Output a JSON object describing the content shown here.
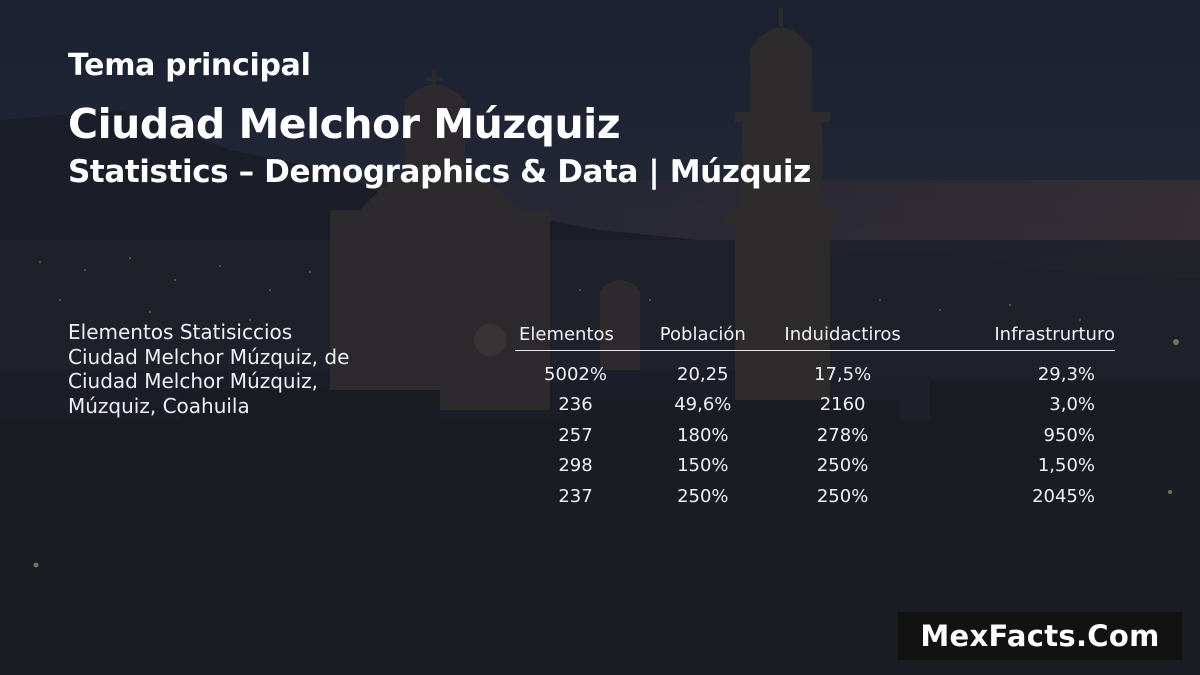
{
  "heading": {
    "kicker": "Tema principal",
    "title": "Ciudad Melchor Múzquiz",
    "subtitle": "Statistics – Demographics & Data | Múzquiz"
  },
  "side_label": {
    "lines": [
      "Elementos Statisiccios",
      "Ciudad Melchor Múzquiz, de",
      "Ciudad Melchor Múzquiz,",
      "Múzquiz, Coahuila"
    ]
  },
  "table": {
    "headers": [
      "Elementos",
      "Población",
      "Induidactiros",
      "Infrastrurturo"
    ],
    "rows": [
      [
        "5002%",
        "20,25",
        "17,5%",
        "29,3%"
      ],
      [
        "236",
        "49,6%",
        "2160",
        "3,0%"
      ],
      [
        "257",
        "180%",
        "278%",
        "950%"
      ],
      [
        "298",
        "150%",
        "250%",
        "1,50%"
      ],
      [
        "237",
        "250%",
        "250%",
        "2045%"
      ]
    ]
  },
  "brand": {
    "text": "MexFacts.Com"
  },
  "colors": {
    "text": "#ffffff",
    "brand_background": "#121212",
    "sky_dusk": "#4a3a3a"
  }
}
